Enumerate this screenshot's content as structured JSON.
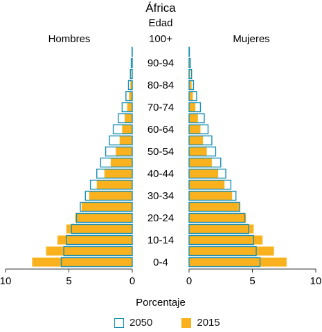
{
  "chart_data": {
    "type": "bar",
    "title": "África",
    "age_axis_label": "Edad",
    "top_age_label": "100+",
    "left_label": "Hombres",
    "right_label": "Mujeres",
    "xlabel": "Porcentaje",
    "xlim": [
      0,
      10
    ],
    "x_ticks_left": [
      "10",
      "5",
      "0"
    ],
    "x_ticks_right": [
      "0",
      "5",
      "10"
    ],
    "age_groups": [
      "0-4",
      "5-9",
      "10-14",
      "15-19",
      "20-24",
      "25-29",
      "30-34",
      "35-39",
      "40-44",
      "45-49",
      "50-54",
      "55-59",
      "60-64",
      "65-69",
      "70-74",
      "75-79",
      "80-84",
      "85-89",
      "90-94",
      "95-99",
      "100+"
    ],
    "age_labels_shown": [
      "0-4",
      "",
      "10-14",
      "",
      "20-24",
      "",
      "30-34",
      "",
      "40-44",
      "",
      "50-54",
      "",
      "60-64",
      "",
      "70-74",
      "",
      "80-84",
      "",
      "90-94",
      "",
      ""
    ],
    "series": [
      {
        "name": "2015",
        "color": "#f9b21d",
        "men": [
          7.9,
          6.8,
          5.9,
          5.2,
          4.5,
          4.0,
          3.4,
          2.8,
          2.2,
          1.7,
          1.3,
          1.0,
          0.8,
          0.6,
          0.4,
          0.25,
          0.15,
          0.07,
          0.03,
          0.01,
          0.0
        ],
        "women": [
          7.7,
          6.7,
          5.8,
          5.1,
          4.5,
          4.0,
          3.4,
          2.8,
          2.3,
          1.8,
          1.4,
          1.1,
          0.9,
          0.7,
          0.5,
          0.3,
          0.2,
          0.1,
          0.05,
          0.01,
          0.0
        ]
      },
      {
        "name": "2050",
        "color": "#ffffff",
        "stroke": "#1a8fb5",
        "men": [
          5.6,
          5.4,
          5.2,
          4.8,
          4.4,
          4.1,
          3.7,
          3.3,
          2.8,
          2.5,
          2.1,
          1.8,
          1.5,
          1.1,
          0.8,
          0.5,
          0.3,
          0.15,
          0.08,
          0.02,
          0.0
        ],
        "women": [
          5.6,
          5.3,
          5.1,
          4.7,
          4.4,
          4.0,
          3.7,
          3.3,
          2.9,
          2.5,
          2.1,
          1.8,
          1.5,
          1.2,
          0.9,
          0.6,
          0.35,
          0.2,
          0.1,
          0.03,
          0.0
        ]
      }
    ]
  },
  "legend": {
    "items": [
      {
        "label": "2050",
        "fill": "#ffffff",
        "stroke": "#1a8fb5"
      },
      {
        "label": "2015",
        "fill": "#f9b21d",
        "stroke": "#f9b21d"
      }
    ]
  }
}
